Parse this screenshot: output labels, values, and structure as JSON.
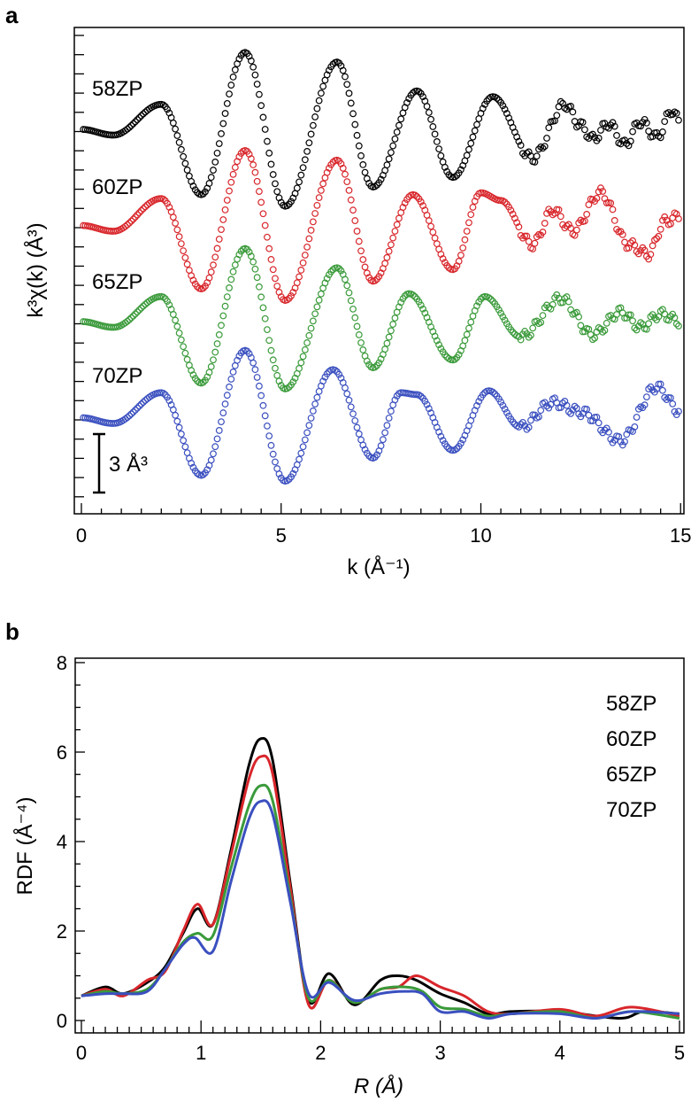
{
  "chart_data": [
    {
      "panel_label": "a",
      "type": "scatter",
      "xlabel": "k (Å⁻¹)",
      "ylabel": "k³χ(k) (Å³)",
      "xlim": [
        0,
        15
      ],
      "xticks": [
        "0",
        "5",
        "10",
        "15"
      ],
      "scale_bar": {
        "label": "3 Å³",
        "value": 3
      },
      "y_tick_step": 1,
      "grid": false,
      "marker": "open-circle",
      "note_stacking": "curves vertically offset",
      "series": [
        {
          "name": "58ZP",
          "color": "#000000",
          "offset": 0,
          "points": [
            [
              0,
              0
            ],
            [
              0.8,
              -0.3
            ],
            [
              2.0,
              1.3
            ],
            [
              3.0,
              -3.4
            ],
            [
              4.1,
              4.0
            ],
            [
              5.1,
              -4.0
            ],
            [
              6.4,
              3.5
            ],
            [
              7.3,
              -3.0
            ],
            [
              8.4,
              2.0
            ],
            [
              9.3,
              -2.5
            ],
            [
              10.3,
              1.7
            ],
            [
              11.3,
              -1.5
            ],
            [
              12.1,
              1.3
            ],
            [
              12.5,
              0.2
            ],
            [
              12.8,
              -0.5
            ],
            [
              13.2,
              0.3
            ],
            [
              13.6,
              -0.8
            ],
            [
              14.0,
              0.4
            ],
            [
              14.4,
              -0.4
            ],
            [
              14.8,
              1.0
            ],
            [
              15,
              0.2
            ]
          ]
        },
        {
          "name": "60ZP",
          "color": "#d8262b",
          "offset": -5,
          "points": [
            [
              0,
              0
            ],
            [
              0.8,
              -0.3
            ],
            [
              2.0,
              1.4
            ],
            [
              3.0,
              -3.3
            ],
            [
              4.1,
              3.9
            ],
            [
              5.1,
              -3.9
            ],
            [
              6.4,
              3.4
            ],
            [
              7.3,
              -2.9
            ],
            [
              8.3,
              1.6
            ],
            [
              9.3,
              -2.3
            ],
            [
              10.0,
              1.7
            ],
            [
              10.5,
              1.3
            ],
            [
              11.3,
              -1.0
            ],
            [
              11.8,
              0.8
            ],
            [
              12.3,
              -0.3
            ],
            [
              13.0,
              1.7
            ],
            [
              13.7,
              -1.0
            ],
            [
              14.2,
              -1.5
            ],
            [
              14.6,
              0.2
            ],
            [
              15,
              0.5
            ]
          ]
        },
        {
          "name": "65ZP",
          "color": "#3a9a3a",
          "offset": -10,
          "points": [
            [
              0,
              0
            ],
            [
              0.8,
              -0.3
            ],
            [
              2.0,
              1.3
            ],
            [
              3.0,
              -3.2
            ],
            [
              4.1,
              3.8
            ],
            [
              5.1,
              -3.5
            ],
            [
              6.4,
              2.8
            ],
            [
              7.3,
              -2.4
            ],
            [
              8.2,
              1.45
            ],
            [
              9.3,
              -2.0
            ],
            [
              10.1,
              1.3
            ],
            [
              11.0,
              -0.8
            ],
            [
              12.0,
              1.2
            ],
            [
              12.8,
              -0.7
            ],
            [
              13.5,
              0.5
            ],
            [
              14.0,
              -0.3
            ],
            [
              14.5,
              0.4
            ],
            [
              15,
              0
            ]
          ]
        },
        {
          "name": "70ZP",
          "color": "#3a4fbf",
          "offset": -15,
          "points": [
            [
              0,
              0
            ],
            [
              0.8,
              -0.3
            ],
            [
              2.0,
              1.3
            ],
            [
              3.0,
              -3.0
            ],
            [
              4.1,
              3.5
            ],
            [
              5.1,
              -3.3
            ],
            [
              6.3,
              2.5
            ],
            [
              7.3,
              -2.1
            ],
            [
              8.0,
              1.3
            ],
            [
              8.4,
              1.2
            ],
            [
              9.3,
              -1.7
            ],
            [
              10.2,
              1.4
            ],
            [
              11.0,
              -0.5
            ],
            [
              11.8,
              0.8
            ],
            [
              12.5,
              0.3
            ],
            [
              13.5,
              -1.2
            ],
            [
              14.4,
              1.6
            ],
            [
              15,
              0.3
            ]
          ]
        }
      ]
    },
    {
      "panel_label": "b",
      "type": "line",
      "xlabel": "R (Å)",
      "ylabel": "RDF (Å⁻⁴)",
      "xlim": [
        0,
        5
      ],
      "ylim": [
        0,
        8
      ],
      "xticks": [
        "0",
        "1",
        "2",
        "3",
        "4",
        "5"
      ],
      "yticks": [
        "0",
        "2",
        "4",
        "6",
        "8"
      ],
      "grid": false,
      "legend": "top-right",
      "series": [
        {
          "name": "58ZP",
          "color": "#000000",
          "points": [
            [
              0,
              0.55
            ],
            [
              0.2,
              0.75
            ],
            [
              0.35,
              0.6
            ],
            [
              0.55,
              0.85
            ],
            [
              0.7,
              1.2
            ],
            [
              0.85,
              1.95
            ],
            [
              0.97,
              2.5
            ],
            [
              1.1,
              2.15
            ],
            [
              1.25,
              3.8
            ],
            [
              1.4,
              5.7
            ],
            [
              1.5,
              6.3
            ],
            [
              1.6,
              5.8
            ],
            [
              1.75,
              3.0
            ],
            [
              1.9,
              0.45
            ],
            [
              2.07,
              1.05
            ],
            [
              2.28,
              0.35
            ],
            [
              2.5,
              0.9
            ],
            [
              2.65,
              1.0
            ],
            [
              2.8,
              0.9
            ],
            [
              3.0,
              0.6
            ],
            [
              3.2,
              0.4
            ],
            [
              3.4,
              0.15
            ],
            [
              3.6,
              0.2
            ],
            [
              4.0,
              0.2
            ],
            [
              4.5,
              0.05
            ],
            [
              4.7,
              0.2
            ],
            [
              5.0,
              0.15
            ]
          ]
        },
        {
          "name": "60ZP",
          "color": "#d8262b",
          "points": [
            [
              0,
              0.55
            ],
            [
              0.2,
              0.7
            ],
            [
              0.35,
              0.55
            ],
            [
              0.55,
              0.9
            ],
            [
              0.7,
              1.1
            ],
            [
              0.85,
              2.0
            ],
            [
              0.97,
              2.6
            ],
            [
              1.1,
              2.15
            ],
            [
              1.25,
              3.7
            ],
            [
              1.4,
              5.4
            ],
            [
              1.5,
              5.9
            ],
            [
              1.6,
              5.5
            ],
            [
              1.75,
              2.9
            ],
            [
              1.9,
              0.35
            ],
            [
              2.07,
              0.9
            ],
            [
              2.28,
              0.4
            ],
            [
              2.5,
              0.7
            ],
            [
              2.65,
              0.75
            ],
            [
              2.8,
              1.0
            ],
            [
              3.0,
              0.75
            ],
            [
              3.2,
              0.55
            ],
            [
              3.4,
              0.2
            ],
            [
              3.6,
              0.15
            ],
            [
              4.0,
              0.25
            ],
            [
              4.3,
              0.1
            ],
            [
              4.6,
              0.3
            ],
            [
              5.0,
              0.1
            ]
          ]
        },
        {
          "name": "65ZP",
          "color": "#3a9a3a",
          "points": [
            [
              0,
              0.55
            ],
            [
              0.2,
              0.65
            ],
            [
              0.35,
              0.6
            ],
            [
              0.55,
              0.7
            ],
            [
              0.7,
              1.15
            ],
            [
              0.85,
              1.75
            ],
            [
              0.97,
              1.95
            ],
            [
              1.1,
              1.9
            ],
            [
              1.25,
              3.4
            ],
            [
              1.4,
              4.8
            ],
            [
              1.5,
              5.25
            ],
            [
              1.6,
              4.9
            ],
            [
              1.75,
              2.7
            ],
            [
              1.9,
              0.5
            ],
            [
              2.07,
              0.9
            ],
            [
              2.28,
              0.4
            ],
            [
              2.5,
              0.7
            ],
            [
              2.7,
              0.75
            ],
            [
              2.85,
              0.65
            ],
            [
              3.0,
              0.3
            ],
            [
              3.2,
              0.25
            ],
            [
              3.4,
              0.1
            ],
            [
              3.6,
              0.15
            ],
            [
              4.0,
              0.2
            ],
            [
              4.3,
              0.05
            ],
            [
              4.6,
              0.2
            ],
            [
              5.0,
              0.05
            ]
          ]
        },
        {
          "name": "70ZP",
          "color": "#3a4fbf",
          "points": [
            [
              0,
              0.55
            ],
            [
              0.2,
              0.6
            ],
            [
              0.35,
              0.6
            ],
            [
              0.55,
              0.65
            ],
            [
              0.7,
              1.15
            ],
            [
              0.85,
              1.7
            ],
            [
              0.95,
              1.85
            ],
            [
              1.1,
              1.55
            ],
            [
              1.25,
              3.1
            ],
            [
              1.4,
              4.5
            ],
            [
              1.5,
              4.9
            ],
            [
              1.6,
              4.6
            ],
            [
              1.75,
              2.6
            ],
            [
              1.9,
              0.6
            ],
            [
              2.07,
              0.85
            ],
            [
              2.28,
              0.45
            ],
            [
              2.5,
              0.6
            ],
            [
              2.7,
              0.65
            ],
            [
              2.85,
              0.6
            ],
            [
              3.0,
              0.2
            ],
            [
              3.2,
              0.2
            ],
            [
              3.4,
              0.05
            ],
            [
              3.6,
              0.15
            ],
            [
              4.0,
              0.15
            ],
            [
              4.3,
              0.05
            ],
            [
              4.6,
              0.2
            ],
            [
              5.0,
              0.15
            ]
          ]
        }
      ]
    }
  ]
}
